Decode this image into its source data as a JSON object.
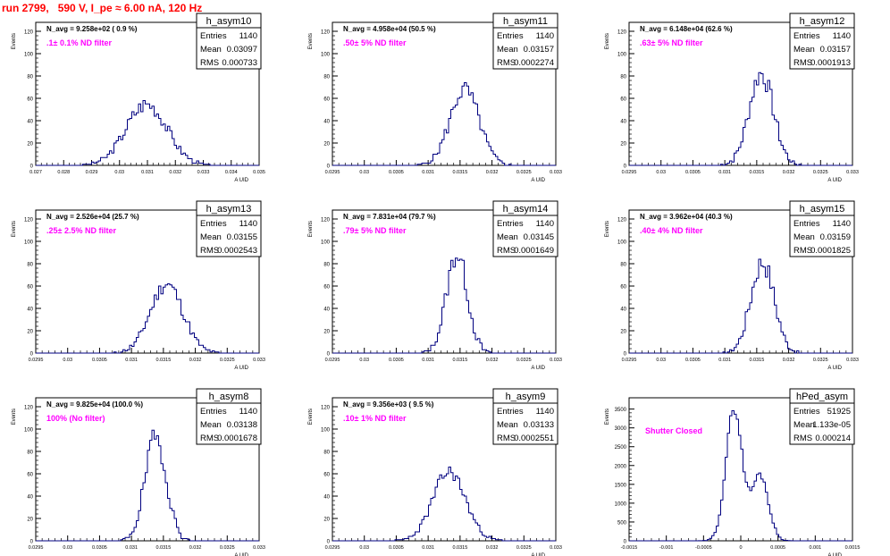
{
  "page_title": "run 2799,   590 V, I_pe ≈ 6.00 nA, 120 Hz",
  "colors": {
    "histogram": "#000080",
    "annotation": "#ff00ff",
    "title": "#ff0000",
    "axis": "#000000"
  },
  "chart_data": [
    {
      "type": "bar",
      "name": "h_asym10",
      "ylabel": "Events",
      "xlabel": "A UID",
      "navg": "N_avg = 9.258e+02 ( 0.9 %)",
      "annotation": ".1± 0.1% ND filter",
      "stats": {
        "entries": "1140",
        "mean": "0.03097",
        "rms": "0.000733"
      },
      "xlim": [
        0.027,
        0.035
      ],
      "ylim": [
        0,
        128
      ],
      "xticks": [
        "0.027",
        "0.028",
        "0.029",
        "0.03",
        "0.031",
        "0.032",
        "0.033",
        "0.034",
        "0.035"
      ],
      "yticks": [
        "0",
        "20",
        "40",
        "60",
        "80",
        "100",
        "120"
      ],
      "center": 0.03097,
      "sigma": 0.000733,
      "peak": 55,
      "jitter": 7,
      "seed": 3
    },
    {
      "type": "bar",
      "name": "h_asym11",
      "ylabel": "Events",
      "xlabel": "A UID",
      "navg": "N_avg = 4.958e+04 (50.5 %)",
      "annotation": ".50± 5% ND filter",
      "stats": {
        "entries": "1140",
        "mean": "0.03157",
        "rms": "0.0002274"
      },
      "xlim": [
        0.0295,
        0.033
      ],
      "ylim": [
        0,
        128
      ],
      "xticks": [
        "0.0295",
        "0.03",
        "0.0305",
        "0.031",
        "0.0315",
        "0.032",
        "0.0325",
        "0.033"
      ],
      "yticks": [
        "0",
        "20",
        "40",
        "60",
        "80",
        "100",
        "120"
      ],
      "center": 0.03157,
      "sigma": 0.000227,
      "peak": 68,
      "jitter": 8,
      "seed": 5
    },
    {
      "type": "bar",
      "name": "h_asym12",
      "ylabel": "Events",
      "xlabel": "A UID",
      "navg": "N_avg = 6.148e+04 (62.6 %)",
      "annotation": ".63± 5% ND filter",
      "stats": {
        "entries": "1140",
        "mean": "0.03157",
        "rms": "0.0001913"
      },
      "xlim": [
        0.0295,
        0.033
      ],
      "ylim": [
        0,
        128
      ],
      "xticks": [
        "0.0295",
        "0.03",
        "0.0305",
        "0.031",
        "0.0315",
        "0.032",
        "0.0325",
        "0.033"
      ],
      "yticks": [
        "0",
        "20",
        "40",
        "60",
        "80",
        "100",
        "120"
      ],
      "center": 0.03157,
      "sigma": 0.000191,
      "peak": 82,
      "jitter": 10,
      "seed": 7
    },
    {
      "type": "bar",
      "name": "h_asym13",
      "ylabel": "Events",
      "xlabel": "A UID",
      "navg": "N_avg = 2.526e+04 (25.7 %)",
      "annotation": ".25± 2.5% ND filter",
      "stats": {
        "entries": "1140",
        "mean": "0.03155",
        "rms": "0.0002543"
      },
      "xlim": [
        0.0295,
        0.033
      ],
      "ylim": [
        0,
        128
      ],
      "xticks": [
        "0.0295",
        "0.03",
        "0.0305",
        "0.031",
        "0.0315",
        "0.032",
        "0.0325",
        "0.033"
      ],
      "yticks": [
        "0",
        "20",
        "40",
        "60",
        "80",
        "100",
        "120"
      ],
      "center": 0.03155,
      "sigma": 0.000254,
      "peak": 62,
      "jitter": 7,
      "seed": 11
    },
    {
      "type": "bar",
      "name": "h_asym14",
      "ylabel": "Events",
      "xlabel": "A UID",
      "navg": "N_avg = 7.831e+04 (79.7 %)",
      "annotation": ".79± 5% ND filter",
      "stats": {
        "entries": "1140",
        "mean": "0.03145",
        "rms": "0.0001649"
      },
      "xlim": [
        0.0295,
        0.033
      ],
      "ylim": [
        0,
        128
      ],
      "xticks": [
        "0.0295",
        "0.03",
        "0.0305",
        "0.031",
        "0.0315",
        "0.032",
        "0.0325",
        "0.033"
      ],
      "yticks": [
        "0",
        "20",
        "40",
        "60",
        "80",
        "100",
        "120"
      ],
      "center": 0.03145,
      "sigma": 0.000165,
      "peak": 88,
      "jitter": 10,
      "seed": 13
    },
    {
      "type": "bar",
      "name": "h_asym15",
      "ylabel": "Events",
      "xlabel": "A UID",
      "navg": "N_avg = 3.962e+04 (40.3 %)",
      "annotation": ".40± 4% ND filter",
      "stats": {
        "entries": "1140",
        "mean": "0.03159",
        "rms": "0.0001825"
      },
      "xlim": [
        0.0295,
        0.033
      ],
      "ylim": [
        0,
        128
      ],
      "xticks": [
        "0.0295",
        "0.03",
        "0.0305",
        "0.031",
        "0.0315",
        "0.032",
        "0.0325",
        "0.033"
      ],
      "yticks": [
        "0",
        "20",
        "40",
        "60",
        "80",
        "100",
        "120"
      ],
      "center": 0.03159,
      "sigma": 0.000183,
      "peak": 82,
      "jitter": 10,
      "seed": 17
    },
    {
      "type": "bar",
      "name": "h_asym8",
      "ylabel": "Events",
      "xlabel": "A UID",
      "navg": "N_avg = 9.825e+04 (100.0 %)",
      "annotation": "100% (No filter)",
      "stats": {
        "entries": "1140",
        "mean": "0.03138",
        "rms": "0.0001678"
      },
      "xlim": [
        0.0295,
        0.033
      ],
      "ylim": [
        0,
        128
      ],
      "xticks": [
        "0.0295",
        "0.03",
        "0.0305",
        "0.031",
        "0.0315",
        "0.032",
        "0.0325",
        "0.033"
      ],
      "yticks": [
        "0",
        "20",
        "40",
        "60",
        "80",
        "100",
        "120"
      ],
      "center": 0.03138,
      "sigma": 0.000168,
      "peak": 92,
      "jitter": 10,
      "seed": 19
    },
    {
      "type": "bar",
      "name": "h_asym9",
      "ylabel": "Events",
      "xlabel": "A UID",
      "navg": "N_avg = 9.356e+03 ( 9.5 %)",
      "annotation": ".10± 1% ND filter",
      "stats": {
        "entries": "1140",
        "mean": "0.03133",
        "rms": "0.0002551"
      },
      "xlim": [
        0.0295,
        0.033
      ],
      "ylim": [
        0,
        128
      ],
      "xticks": [
        "0.0295",
        "0.03",
        "0.0305",
        "0.031",
        "0.0315",
        "0.032",
        "0.0325",
        "0.033"
      ],
      "yticks": [
        "0",
        "20",
        "40",
        "60",
        "80",
        "100",
        "120"
      ],
      "center": 0.03133,
      "sigma": 0.000255,
      "peak": 62,
      "jitter": 6,
      "seed": 23
    },
    {
      "type": "bar",
      "name": "hPed_asym",
      "ylabel": "Events",
      "xlabel": "A UID",
      "navg": "",
      "annotation": "Shutter Closed",
      "stats": {
        "entries": "51925",
        "mean": "1.133e-05",
        "rms": "0.000214"
      },
      "xlim": [
        -0.0015,
        0.0015
      ],
      "ylim": [
        0,
        3800
      ],
      "xticks": [
        "-0.0015",
        "-0.001",
        "-0.0005",
        "0",
        "0.0005",
        "0.001",
        "0.0015"
      ],
      "yticks": [
        "0",
        "500",
        "1000",
        "1500",
        "2000",
        "2500",
        "3000",
        "3500"
      ],
      "bimodal": [
        {
          "center": -9e-05,
          "sigma": 0.00011,
          "peak": 3500
        },
        {
          "center": 0.00026,
          "sigma": 0.00011,
          "peak": 1750
        }
      ],
      "jitter": 120,
      "seed": 29
    }
  ]
}
